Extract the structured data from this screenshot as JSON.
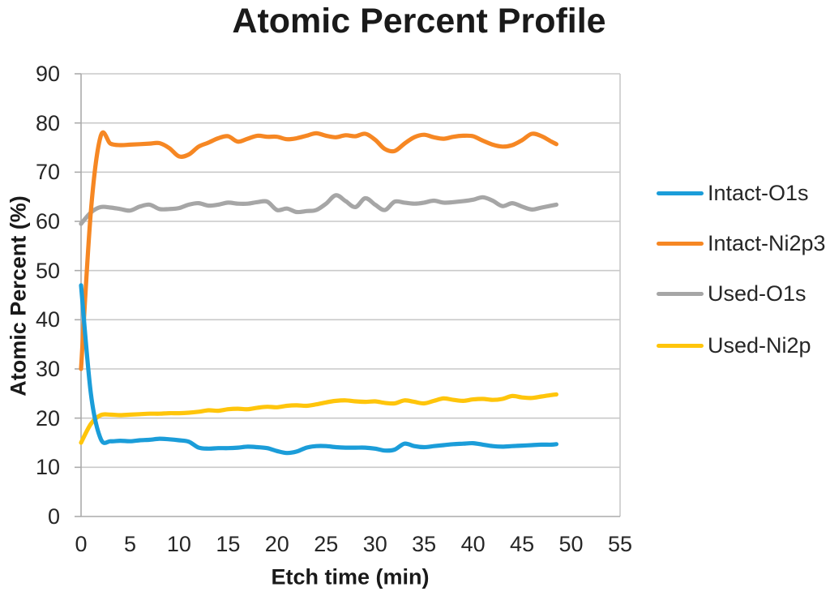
{
  "chart": {
    "title": "Atomic Percent Profile",
    "x_axis": {
      "title": "Etch time (min)"
    },
    "y_axis": {
      "title": "Atomic Percent (%)"
    }
  },
  "chart_data": {
    "type": "line",
    "title": "Atomic Percent Profile",
    "xlabel": "Etch time (min)",
    "ylabel": "Atomic Percent (%)",
    "xlim": [
      0,
      55
    ],
    "ylim": [
      0,
      90
    ],
    "x_ticks": [
      0,
      5,
      10,
      15,
      20,
      25,
      30,
      35,
      40,
      45,
      50,
      55
    ],
    "y_ticks": [
      0,
      10,
      20,
      30,
      40,
      50,
      60,
      70,
      80,
      90
    ],
    "grid": "horizontal",
    "legend_position": "right",
    "x": [
      0,
      1,
      2,
      3,
      4,
      5,
      6,
      7,
      8,
      9,
      10,
      11,
      12,
      13,
      14,
      15,
      16,
      17,
      18,
      19,
      20,
      21,
      22,
      23,
      24,
      25,
      26,
      27,
      28,
      29,
      30,
      31,
      32,
      33,
      34,
      35,
      36,
      37,
      38,
      39,
      40,
      41,
      42,
      43,
      44,
      45,
      46,
      47,
      48,
      48.5
    ],
    "series": [
      {
        "name": "Intact-O1s",
        "color": "#1B9DD9",
        "values": [
          47.0,
          25.0,
          15.8,
          15.3,
          15.4,
          15.3,
          15.5,
          15.6,
          15.8,
          15.7,
          15.5,
          15.2,
          14.0,
          13.8,
          13.9,
          13.9,
          14.0,
          14.2,
          14.1,
          13.9,
          13.3,
          12.9,
          13.2,
          14.0,
          14.3,
          14.3,
          14.1,
          14.0,
          14.0,
          14.0,
          13.8,
          13.4,
          13.6,
          14.8,
          14.3,
          14.1,
          14.3,
          14.5,
          14.7,
          14.8,
          14.9,
          14.6,
          14.3,
          14.2,
          14.3,
          14.4,
          14.5,
          14.6,
          14.6,
          14.7
        ]
      },
      {
        "name": "Intact-Ni2p3",
        "color": "#F68723",
        "values": [
          30.0,
          62.0,
          77.3,
          75.8,
          75.5,
          75.6,
          75.7,
          75.8,
          75.9,
          74.9,
          73.2,
          73.6,
          75.2,
          76.0,
          76.9,
          77.3,
          76.2,
          76.8,
          77.4,
          77.2,
          77.2,
          76.7,
          76.9,
          77.4,
          77.9,
          77.4,
          77.1,
          77.5,
          77.3,
          77.8,
          76.6,
          74.7,
          74.3,
          75.8,
          77.1,
          77.6,
          77.1,
          76.8,
          77.2,
          77.4,
          77.3,
          76.4,
          75.6,
          75.2,
          75.5,
          76.5,
          77.8,
          77.3,
          76.2,
          75.7
        ]
      },
      {
        "name": "Used-O1s",
        "color": "#A6A6A6",
        "values": [
          59.5,
          61.8,
          62.9,
          62.8,
          62.5,
          62.2,
          63.0,
          63.4,
          62.5,
          62.5,
          62.7,
          63.4,
          63.7,
          63.2,
          63.4,
          63.8,
          63.6,
          63.6,
          63.9,
          64.0,
          62.3,
          62.6,
          61.9,
          62.1,
          62.3,
          63.6,
          65.3,
          64.1,
          62.9,
          64.7,
          63.4,
          62.3,
          64.0,
          63.8,
          63.6,
          63.8,
          64.2,
          63.8,
          63.9,
          64.1,
          64.4,
          64.9,
          64.2,
          63.1,
          63.7,
          63.0,
          62.4,
          62.8,
          63.2,
          63.4
        ]
      },
      {
        "name": "Used-Ni2p",
        "color": "#FFC50B",
        "values": [
          15.0,
          18.8,
          20.6,
          20.7,
          20.6,
          20.7,
          20.8,
          20.9,
          20.9,
          21.0,
          21.0,
          21.1,
          21.3,
          21.6,
          21.5,
          21.8,
          21.9,
          21.8,
          22.1,
          22.3,
          22.2,
          22.5,
          22.6,
          22.5,
          22.8,
          23.2,
          23.5,
          23.6,
          23.4,
          23.3,
          23.4,
          23.1,
          23.0,
          23.6,
          23.3,
          23.0,
          23.5,
          24.0,
          23.7,
          23.5,
          23.8,
          23.9,
          23.7,
          23.9,
          24.5,
          24.2,
          24.1,
          24.4,
          24.7,
          24.8
        ]
      }
    ]
  },
  "style": {
    "grid_color": "#C9C9C9",
    "axis_color": "#ABABAB",
    "text_color": "#262626"
  }
}
